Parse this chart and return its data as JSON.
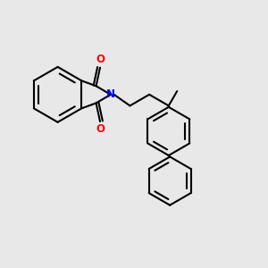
{
  "background_color": "#e8e8e8",
  "bond_color": "#000000",
  "bond_width": 1.5,
  "N_color": "#0000ff",
  "O_color": "#ff0000",
  "figsize": [
    3.0,
    3.0
  ],
  "dpi": 100,
  "xlim": [
    0,
    10
  ],
  "ylim": [
    0,
    10
  ]
}
